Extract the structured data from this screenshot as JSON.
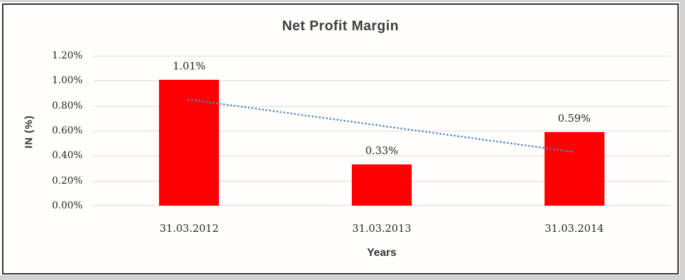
{
  "window": {
    "margin_color": "#d3d3d3",
    "frame_border_color": "#333333",
    "chart_background": "#fffefd"
  },
  "chart_data": {
    "type": "bar",
    "title": "Net Profit Margin",
    "xlabel": "Years",
    "ylabel": "IN (%)",
    "categories": [
      "31.03.2012",
      "31.03.2013",
      "31.03.2014"
    ],
    "values": [
      1.01,
      0.33,
      0.59
    ],
    "data_labels": [
      "1.01%",
      "0.33%",
      "0.59%"
    ],
    "unit": "%",
    "ylim": [
      0,
      1.2
    ],
    "y_tick_step": 0.2,
    "y_tick_labels": [
      "1.20%",
      "1.00%",
      "0.80%",
      "0.60%",
      "0.40%",
      "0.20%",
      "0.00%"
    ],
    "grid": true,
    "legend": "none",
    "bar_color": "#fe0000",
    "gridline_color": "#d9d9d9",
    "title_color": "#3f3f3f",
    "text_color": "#1f1f1f",
    "trendline": {
      "type": "linear",
      "style": "dotted",
      "color": "#4e8ac8",
      "start_value": 0.85,
      "end_value": 0.43
    }
  }
}
